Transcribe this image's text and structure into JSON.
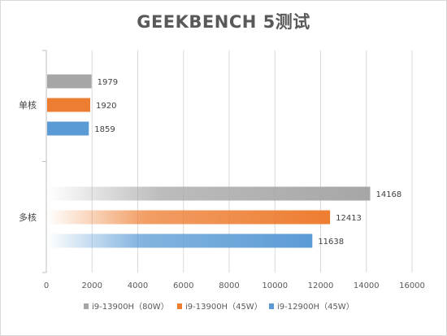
{
  "chart_data": {
    "type": "bar",
    "orientation": "horizontal",
    "title": "GEEKBENCH 5测试",
    "categories": [
      "单核",
      "多核"
    ],
    "series": [
      {
        "name": "i9-13900H（80W）",
        "values": [
          1979,
          14168
        ],
        "color": "#a6a6a6"
      },
      {
        "name": "i9-13900H（45W）",
        "values": [
          1920,
          12413
        ],
        "color": "#ed7d31"
      },
      {
        "name": "i9-12900H（45W）",
        "values": [
          1859,
          11638
        ],
        "color": "#5b9bd5"
      }
    ],
    "xlim": [
      0,
      16000
    ],
    "xticks": [
      0,
      2000,
      4000,
      6000,
      8000,
      10000,
      12000,
      14000,
      16000
    ],
    "grid": true,
    "legend_position": "bottom"
  }
}
